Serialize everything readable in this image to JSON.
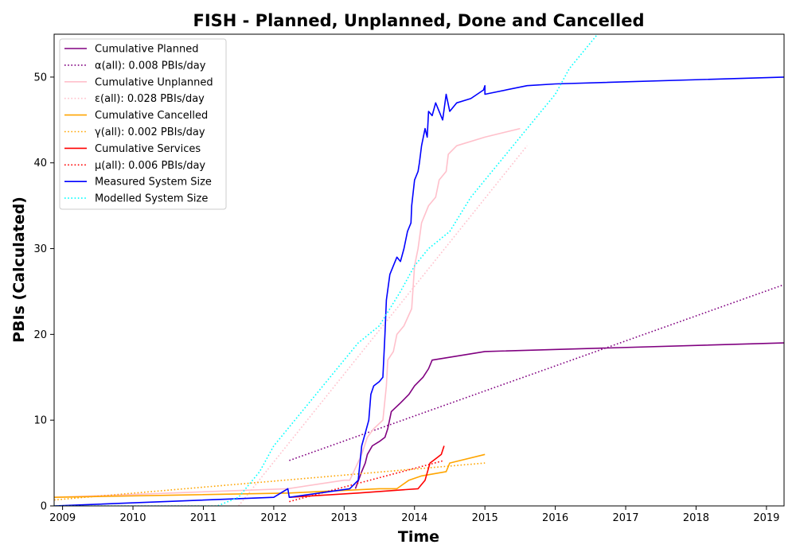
{
  "chart_data": {
    "type": "line",
    "title": "FISH - Planned, Unplanned, Done  and Cancelled",
    "xlabel": "Time",
    "ylabel": "PBIs (Calculated)",
    "xlim": [
      2008.88,
      2019.25
    ],
    "ylim": [
      0,
      55
    ],
    "x_ticks": [
      "2009",
      "2010",
      "2011",
      "2012",
      "2013",
      "2014",
      "2015",
      "2016",
      "2017",
      "2018",
      "2019"
    ],
    "y_ticks": [
      "0",
      "10",
      "20",
      "30",
      "40",
      "50"
    ],
    "grid": false,
    "legend_position": "top-left",
    "series": [
      {
        "name": "Cumulative Planned",
        "color": "#800080",
        "style": "solid",
        "points": [
          [
            2013.16,
            2
          ],
          [
            2013.25,
            4
          ],
          [
            2013.3,
            5
          ],
          [
            2013.33,
            6
          ],
          [
            2013.4,
            7
          ],
          [
            2013.5,
            7.5
          ],
          [
            2013.58,
            8
          ],
          [
            2013.62,
            9
          ],
          [
            2013.67,
            11
          ],
          [
            2013.8,
            12
          ],
          [
            2013.92,
            13
          ],
          [
            2014.0,
            14
          ],
          [
            2014.12,
            15
          ],
          [
            2014.2,
            16
          ],
          [
            2014.25,
            17
          ],
          [
            2015.0,
            18
          ],
          [
            2019.25,
            19
          ]
        ]
      },
      {
        "name": "α(all): 0.008 PBIs/day",
        "color": "#800080",
        "style": "dotted",
        "points": [
          [
            2012.22,
            5.3
          ],
          [
            2019.25,
            25.8
          ]
        ]
      },
      {
        "name": "Cumulative Unplanned",
        "color": "#FFC0CB",
        "style": "solid",
        "points": [
          [
            2008.88,
            1
          ],
          [
            2012.2,
            2
          ],
          [
            2013.0,
            3
          ],
          [
            2013.08,
            3
          ],
          [
            2013.25,
            6
          ],
          [
            2013.33,
            8
          ],
          [
            2013.42,
            9
          ],
          [
            2013.55,
            10
          ],
          [
            2013.6,
            14
          ],
          [
            2013.62,
            17
          ],
          [
            2013.7,
            18
          ],
          [
            2013.75,
            20
          ],
          [
            2013.85,
            21
          ],
          [
            2013.96,
            23
          ],
          [
            2014.0,
            28
          ],
          [
            2014.05,
            30
          ],
          [
            2014.1,
            33
          ],
          [
            2014.2,
            35
          ],
          [
            2014.3,
            36
          ],
          [
            2014.35,
            38
          ],
          [
            2014.45,
            39
          ],
          [
            2014.48,
            41
          ],
          [
            2014.6,
            42
          ],
          [
            2015.0,
            43
          ],
          [
            2015.5,
            44
          ]
        ]
      },
      {
        "name": "ε(all): 0.028 PBIs/day",
        "color": "#FFC0CB",
        "style": "dotted",
        "points": [
          [
            2011.5,
            0
          ],
          [
            2015.6,
            42
          ]
        ]
      },
      {
        "name": "Cumulative Cancelled",
        "color": "#FFA500",
        "style": "solid",
        "points": [
          [
            2008.88,
            1
          ],
          [
            2012.22,
            1.5
          ],
          [
            2013.5,
            2
          ],
          [
            2013.75,
            2
          ],
          [
            2013.92,
            3
          ],
          [
            2014.1,
            3.5
          ],
          [
            2014.45,
            4
          ],
          [
            2014.5,
            5
          ],
          [
            2015.0,
            6
          ]
        ]
      },
      {
        "name": "γ(all): 0.002 PBIs/day",
        "color": "#FFA500",
        "style": "dotted",
        "points": [
          [
            2008.88,
            0.7
          ],
          [
            2015.0,
            5
          ]
        ]
      },
      {
        "name": "Cumulative Services",
        "color": "#FF0000",
        "style": "solid",
        "points": [
          [
            2012.22,
            1
          ],
          [
            2013.2,
            1.5
          ],
          [
            2014.05,
            2
          ],
          [
            2014.15,
            3
          ],
          [
            2014.22,
            5
          ],
          [
            2014.3,
            5.5
          ],
          [
            2014.38,
            6
          ],
          [
            2014.42,
            7
          ]
        ]
      },
      {
        "name": "μ(all): 0.006 PBIs/day",
        "color": "#FF0000",
        "style": "dotted",
        "points": [
          [
            2012.22,
            0.5
          ],
          [
            2014.42,
            5.3
          ]
        ]
      },
      {
        "name": "Measured System Size",
        "color": "#0000FF",
        "style": "solid",
        "points": [
          [
            2008.88,
            0
          ],
          [
            2012.0,
            1
          ],
          [
            2012.2,
            2
          ],
          [
            2012.22,
            1
          ],
          [
            2013.08,
            2
          ],
          [
            2013.2,
            3
          ],
          [
            2013.25,
            7
          ],
          [
            2013.3,
            8.5
          ],
          [
            2013.35,
            10
          ],
          [
            2013.38,
            13
          ],
          [
            2013.42,
            14
          ],
          [
            2013.5,
            14.5
          ],
          [
            2013.55,
            15
          ],
          [
            2013.58,
            20
          ],
          [
            2013.6,
            24
          ],
          [
            2013.65,
            27
          ],
          [
            2013.7,
            28
          ],
          [
            2013.75,
            29
          ],
          [
            2013.8,
            28.5
          ],
          [
            2013.85,
            30
          ],
          [
            2013.9,
            32
          ],
          [
            2013.95,
            33
          ],
          [
            2013.96,
            35
          ],
          [
            2014.0,
            38
          ],
          [
            2014.05,
            39
          ],
          [
            2014.07,
            40
          ],
          [
            2014.1,
            42
          ],
          [
            2014.15,
            44
          ],
          [
            2014.18,
            43
          ],
          [
            2014.2,
            46
          ],
          [
            2014.25,
            45.5
          ],
          [
            2014.3,
            47
          ],
          [
            2014.4,
            45
          ],
          [
            2014.45,
            48
          ],
          [
            2014.5,
            46
          ],
          [
            2014.6,
            47
          ],
          [
            2014.8,
            47.5
          ],
          [
            2014.98,
            48.5
          ],
          [
            2015.0,
            49
          ],
          [
            2015.0,
            48
          ],
          [
            2015.6,
            49
          ],
          [
            2016.0,
            49.2
          ],
          [
            2019.25,
            50
          ]
        ]
      },
      {
        "name": "Modelled System Size",
        "color": "#00FFFF",
        "style": "dotted",
        "points": [
          [
            2008.88,
            0
          ],
          [
            2011.2,
            0
          ],
          [
            2011.5,
            1
          ],
          [
            2011.8,
            4
          ],
          [
            2012.0,
            7
          ],
          [
            2012.2,
            9
          ],
          [
            2012.5,
            12
          ],
          [
            2012.8,
            15
          ],
          [
            2013.0,
            17
          ],
          [
            2013.2,
            19
          ],
          [
            2013.5,
            21
          ],
          [
            2013.8,
            25
          ],
          [
            2014.0,
            28
          ],
          [
            2014.2,
            30
          ],
          [
            2014.5,
            32
          ],
          [
            2014.8,
            36
          ],
          [
            2015.0,
            38
          ],
          [
            2015.2,
            40
          ],
          [
            2015.5,
            43
          ],
          [
            2015.8,
            46
          ],
          [
            2016.0,
            48
          ],
          [
            2016.2,
            51
          ],
          [
            2016.4,
            53
          ],
          [
            2016.6,
            55
          ]
        ]
      }
    ]
  }
}
